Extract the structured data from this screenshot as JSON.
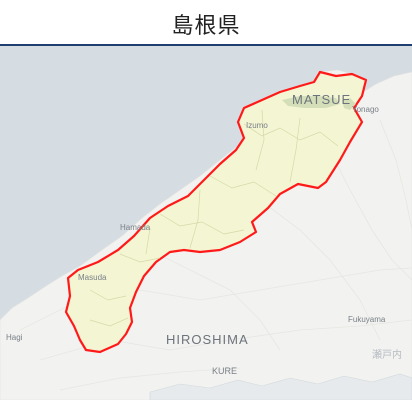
{
  "title": "島根県",
  "colors": {
    "sea": "#d6dde2",
    "land": "#f2f2f0",
    "prefecture_fill": "#f4f5d3",
    "boundary": "#ff1a1a",
    "header_rule": "#1f3f73"
  },
  "map_labels": {
    "matsue": "MATSUE",
    "izumo": "Izumo",
    "yonago": "Yonago",
    "hamada": "Hamada",
    "masuda": "Masuda",
    "hagi": "Hagi",
    "hiroshima": "HIROSHIMA",
    "fukuyama": "Fukuyama",
    "kure": "KURE",
    "setonaikai": "瀬戸内"
  }
}
